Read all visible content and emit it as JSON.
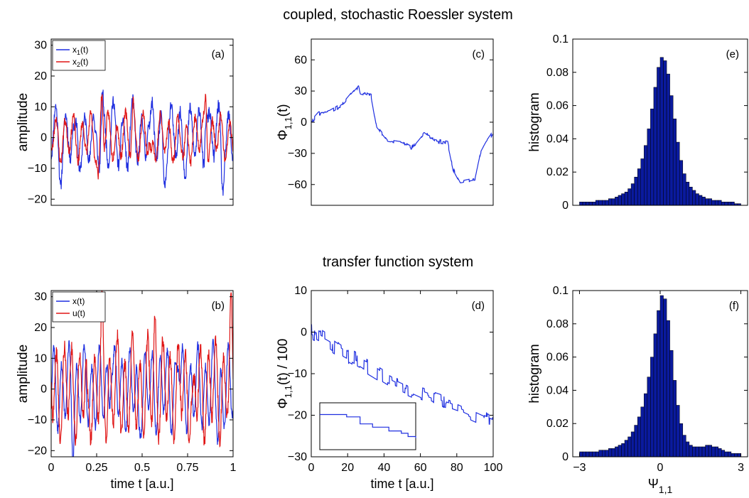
{
  "titles": {
    "top": "coupled, stochastic Roessler system",
    "bottom": "transfer function system"
  },
  "colors": {
    "blue": "#1f2fe0",
    "red": "#e01515",
    "bar": "#0a1a9e"
  },
  "chart_data": [
    {
      "id": "a",
      "type": "line",
      "panel_label": "(a)",
      "ylabel": "amplitude",
      "xlabel": "",
      "xlim": [
        0,
        1
      ],
      "ylim": [
        -22,
        32
      ],
      "yticks": [
        -20,
        -10,
        0,
        10,
        20,
        30
      ],
      "xticks": [],
      "legend": [
        {
          "name": "x",
          "sub": "1",
          "tail": "(t)",
          "color": "#1f2fe0"
        },
        {
          "name": "x",
          "sub": "2",
          "tail": "(t)",
          "color": "#e01515"
        }
      ],
      "legend_position": "top-left",
      "series": [
        {
          "name": "x1(t)",
          "color": "#1f2fe0",
          "kind": "osc",
          "n": 600,
          "seed": 11,
          "cycles": 19,
          "amp": 9,
          "noise": 2.2,
          "spikes": [
            [
              0.05,
              -6
            ],
            [
              0.13,
              -9
            ],
            [
              0.24,
              -10
            ],
            [
              0.28,
              17
            ],
            [
              0.53,
              14
            ],
            [
              0.62,
              -12
            ],
            [
              0.85,
              17
            ],
            [
              0.94,
              -11
            ]
          ]
        },
        {
          "name": "x2(t)",
          "color": "#e01515",
          "kind": "osc",
          "n": 600,
          "seed": 23,
          "cycles": 21,
          "amp": 6,
          "noise": 1.6,
          "spikes": [
            [
              0.28,
              19
            ],
            [
              0.26,
              -18
            ],
            [
              0.45,
              12
            ],
            [
              0.55,
              -10
            ],
            [
              0.85,
              18
            ],
            [
              0.73,
              -8
            ]
          ]
        }
      ]
    },
    {
      "id": "b",
      "type": "line",
      "panel_label": "(b)",
      "ylabel": "amplitude",
      "xlabel": "time t [a.u.]",
      "xlim": [
        0,
        1
      ],
      "ylim": [
        -22,
        32
      ],
      "yticks": [
        -20,
        -10,
        0,
        10,
        20,
        30
      ],
      "xticks": [
        0,
        0.25,
        0.5,
        0.75,
        1
      ],
      "xticklabels": [
        "0",
        "0.25",
        "0.5",
        "0.75",
        "1"
      ],
      "legend": [
        {
          "name": "x(t)",
          "sub": "",
          "tail": "",
          "color": "#1f2fe0"
        },
        {
          "name": "u(t)",
          "sub": "",
          "tail": "",
          "color": "#e01515"
        }
      ],
      "legend_position": "top-left",
      "series": [
        {
          "name": "x(t)",
          "color": "#1f2fe0",
          "kind": "osc",
          "n": 700,
          "seed": 37,
          "cycles": 24,
          "amp": 11,
          "noise": 1.5,
          "spikes": [
            [
              0.12,
              -14
            ],
            [
              0.33,
              17
            ],
            [
              0.48,
              -14
            ],
            [
              0.7,
              18
            ],
            [
              0.92,
              -14
            ]
          ]
        },
        {
          "name": "u(t)",
          "color": "#e01515",
          "kind": "osc",
          "n": 700,
          "seed": 41,
          "cycles": 24,
          "amp": 13,
          "noise": 2.5,
          "spikes": [
            [
              0.28,
              21
            ],
            [
              0.2,
              -15
            ],
            [
              0.57,
              20
            ],
            [
              0.78,
              -15
            ],
            [
              0.99,
              20
            ]
          ]
        }
      ]
    },
    {
      "id": "c",
      "type": "line",
      "panel_label": "(c)",
      "ylabel": "Φ",
      "ylabel_sub": "1,1",
      "ylabel_tail": "(t)",
      "xlabel": "",
      "xlim": [
        0,
        100
      ],
      "ylim": [
        -80,
        80
      ],
      "yticks": [
        -60,
        -30,
        0,
        30,
        60
      ],
      "xticks": [],
      "series": [
        {
          "name": "Φ1,1(t)",
          "color": "#1f2fe0",
          "kind": "walk",
          "n": 900,
          "seed": 5,
          "anchors": [
            [
              0,
              0
            ],
            [
              4,
              8
            ],
            [
              10,
              10
            ],
            [
              18,
              18
            ],
            [
              26,
              35
            ],
            [
              27,
              28
            ],
            [
              33,
              25
            ],
            [
              36,
              -5
            ],
            [
              42,
              -18
            ],
            [
              50,
              -20
            ],
            [
              55,
              -25
            ],
            [
              62,
              -10
            ],
            [
              68,
              -18
            ],
            [
              75,
              -20
            ],
            [
              78,
              -45
            ],
            [
              82,
              -58
            ],
            [
              90,
              -55
            ],
            [
              93,
              -30
            ],
            [
              96,
              -20
            ],
            [
              100,
              -10
            ]
          ]
        }
      ]
    },
    {
      "id": "d",
      "type": "line",
      "panel_label": "(d)",
      "ylabel": "Φ",
      "ylabel_sub": "1,1",
      "ylabel_tail": "(t) / 100",
      "xlabel": "time t [a.u.]",
      "xlim": [
        0,
        100
      ],
      "ylim": [
        -30,
        10
      ],
      "yticks": [
        -30,
        -20,
        -10,
        0,
        10
      ],
      "xticks": [
        0,
        20,
        40,
        60,
        80,
        100
      ],
      "xticklabels": [
        "0",
        "20",
        "40",
        "60",
        "80",
        "100"
      ],
      "series": [
        {
          "name": "Φ1,1(t)/100",
          "color": "#1f2fe0",
          "kind": "walk",
          "n": 600,
          "seed": 9,
          "anchors": [
            [
              0,
              0
            ],
            [
              10,
              -2.5
            ],
            [
              18,
              -5
            ],
            [
              30,
              -8
            ],
            [
              45,
              -12
            ],
            [
              60,
              -15
            ],
            [
              80,
              -18
            ],
            [
              100,
              -22
            ]
          ]
        }
      ],
      "inset": {
        "steps": [
          [
            0,
            0.75
          ],
          [
            0.22,
            0.75
          ],
          [
            0.28,
            0.7
          ],
          [
            0.42,
            0.55
          ],
          [
            0.55,
            0.48
          ],
          [
            0.65,
            0.48
          ],
          [
            0.72,
            0.4
          ],
          [
            0.85,
            0.35
          ],
          [
            0.92,
            0.28
          ],
          [
            1,
            0.25
          ]
        ]
      }
    },
    {
      "id": "e",
      "type": "bar",
      "panel_label": "(e)",
      "ylabel": "histogram",
      "xlabel": "",
      "xlim": [
        -3.25,
        3.25
      ],
      "ylim": [
        0,
        0.1
      ],
      "yticks": [
        0,
        0.02,
        0.04,
        0.06,
        0.08,
        0.1
      ],
      "yticklabels": [
        "0",
        "0.02",
        "0.04",
        "0.06",
        "0.08",
        "0.1"
      ],
      "xticks": [],
      "bins": 50,
      "bin_range": [
        -3,
        3
      ],
      "values": [
        0.002,
        0.002,
        0.002,
        0.002,
        0.002,
        0.003,
        0.003,
        0.003,
        0.003,
        0.004,
        0.004,
        0.005,
        0.006,
        0.007,
        0.008,
        0.01,
        0.013,
        0.017,
        0.022,
        0.028,
        0.036,
        0.046,
        0.058,
        0.071,
        0.083,
        0.089,
        0.087,
        0.079,
        0.066,
        0.052,
        0.038,
        0.027,
        0.019,
        0.014,
        0.011,
        0.009,
        0.007,
        0.006,
        0.005,
        0.004,
        0.004,
        0.003,
        0.003,
        0.003,
        0.002,
        0.002,
        0.002,
        0.002,
        0.001,
        0.001
      ]
    },
    {
      "id": "f",
      "type": "bar",
      "panel_label": "(f)",
      "ylabel": "histogram",
      "xlabel": "Ψ",
      "xlabel_sub": "1,1",
      "xlim": [
        -3.25,
        3.25
      ],
      "ylim": [
        0,
        0.1
      ],
      "yticks": [
        0,
        0.02,
        0.04,
        0.06,
        0.08,
        0.1
      ],
      "yticklabels": [
        "0",
        "0.02",
        "0.04",
        "0.06",
        "0.08",
        "0.1"
      ],
      "xticks": [
        -3,
        0,
        3
      ],
      "xticklabels": [
        "−3",
        "0",
        "3"
      ],
      "bins": 50,
      "bin_range": [
        -3,
        3
      ],
      "values": [
        0.003,
        0.003,
        0.003,
        0.003,
        0.003,
        0.003,
        0.004,
        0.004,
        0.004,
        0.005,
        0.005,
        0.006,
        0.007,
        0.008,
        0.01,
        0.012,
        0.015,
        0.019,
        0.024,
        0.03,
        0.038,
        0.048,
        0.06,
        0.074,
        0.088,
        0.097,
        0.095,
        0.082,
        0.064,
        0.046,
        0.031,
        0.02,
        0.013,
        0.009,
        0.007,
        0.006,
        0.006,
        0.006,
        0.006,
        0.007,
        0.007,
        0.006,
        0.006,
        0.005,
        0.004,
        0.003,
        0.003,
        0.002,
        0.002,
        0.002
      ]
    }
  ]
}
